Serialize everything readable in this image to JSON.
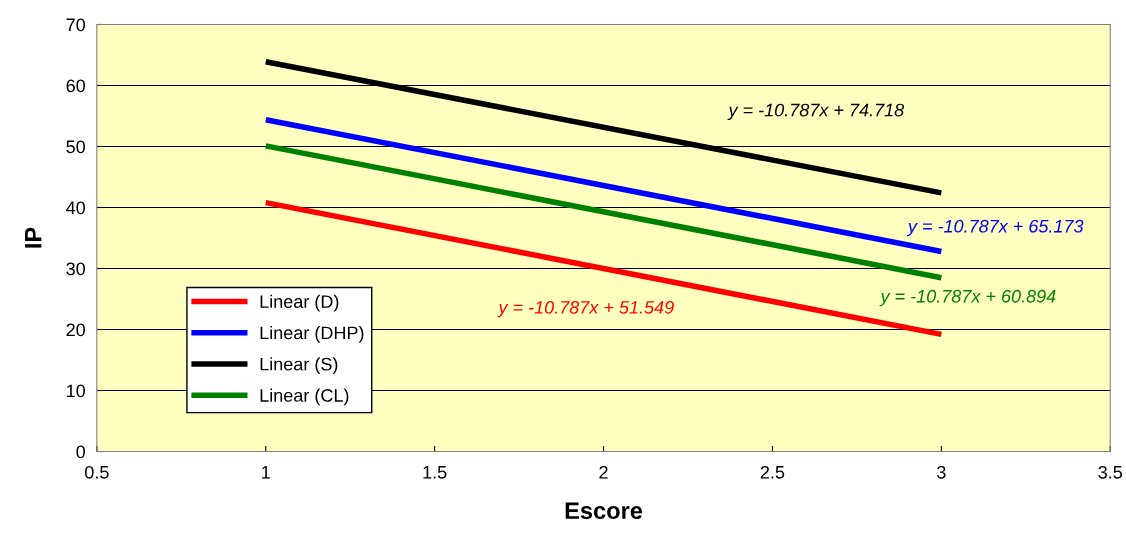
{
  "chart_data": {
    "type": "line",
    "xlabel": "Escore",
    "ylabel": "IP",
    "x": [
      1,
      3
    ],
    "series": [
      {
        "name": "Linear (D)",
        "color": "#ff0000",
        "values": [
          40.8,
          19.2
        ]
      },
      {
        "name": "Linear (DHP)",
        "color": "#0000ff",
        "values": [
          54.4,
          32.8
        ]
      },
      {
        "name": "Linear (S)",
        "color": "#000000",
        "values": [
          63.9,
          42.4
        ]
      },
      {
        "name": "Linear (CL)",
        "color": "#008000",
        "values": [
          50.1,
          28.5
        ]
      }
    ],
    "annotations": [
      "y = -10.787x + 51.549",
      "y = -10.787x + 65.173",
      "y = -10.787x + 74.718",
      "y = -10.787x + 60.894"
    ],
    "xlim": [
      0.5,
      3.5
    ],
    "xticks": [
      0.5,
      1,
      1.5,
      2,
      2.5,
      3,
      3.5
    ],
    "ylim": [
      0,
      70
    ],
    "yticks": [
      0,
      10,
      20,
      30,
      40,
      50,
      60,
      70
    ],
    "grid": "y",
    "legend": "bottom left",
    "marker": "none",
    "line_style": "solid"
  }
}
